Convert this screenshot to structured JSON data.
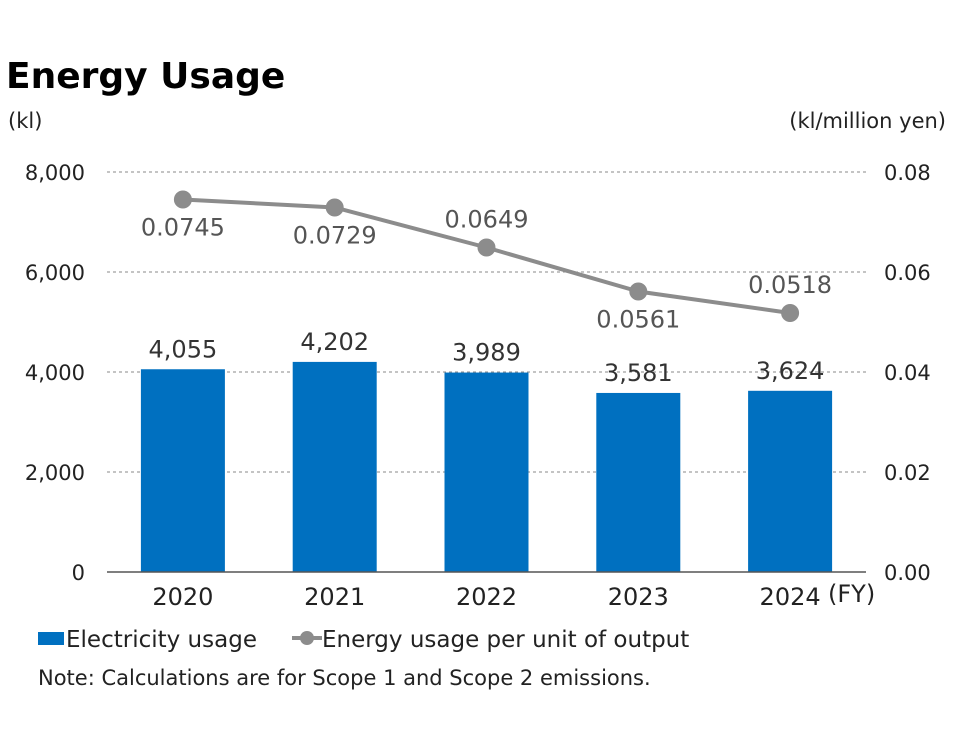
{
  "title": "Energy Usage",
  "left_unit": "(kl)",
  "right_unit": "(kl/million yen)",
  "x_unit": "(FY)",
  "note": "Note: Calculations are for Scope 1 and Scope 2 emissions.",
  "chart_data": {
    "type": "bar",
    "title": "Energy Usage",
    "categories": [
      "2020",
      "2021",
      "2022",
      "2023",
      "2024"
    ],
    "series": [
      {
        "name": "Electricity usage",
        "type": "bar",
        "axis": "left",
        "values": [
          4055,
          4202,
          3989,
          3581,
          3624
        ],
        "labels": [
          "4,055",
          "4,202",
          "3,989",
          "3,581",
          "3,624"
        ],
        "color": "#0070C0"
      },
      {
        "name": "Energy usage per unit of output",
        "type": "line",
        "axis": "right",
        "values": [
          0.0745,
          0.0729,
          0.0649,
          0.0561,
          0.0518
        ],
        "labels": [
          "0.0745",
          "0.0729",
          "0.0649",
          "0.0561",
          "0.0518"
        ],
        "color": "#8C8C8C"
      }
    ],
    "ylim_left": [
      0,
      8000
    ],
    "yticks_left": [
      "0",
      "2,000",
      "4,000",
      "6,000",
      "8,000"
    ],
    "ylim_right": [
      0,
      0.08
    ],
    "yticks_right": [
      "0.00",
      "0.02",
      "0.04",
      "0.06",
      "0.08"
    ],
    "grid": "horizontal dashed",
    "legend": "bottom-left"
  }
}
